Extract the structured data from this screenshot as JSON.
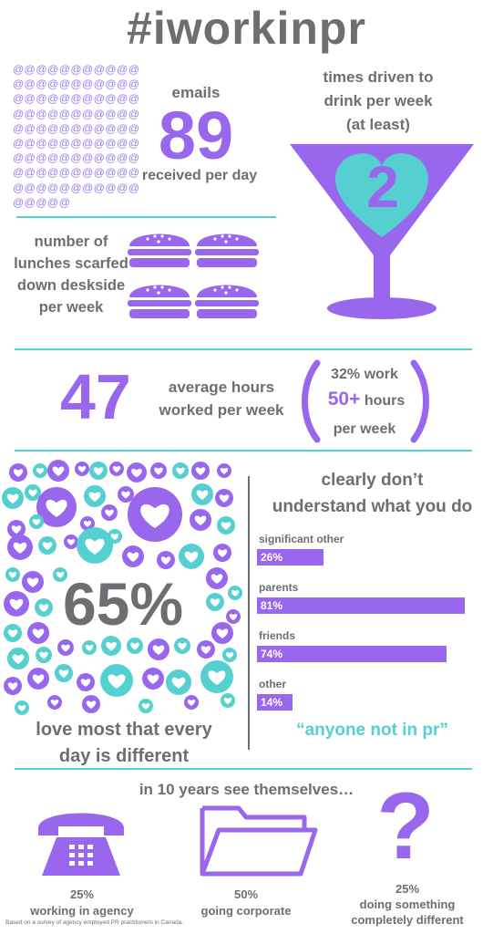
{
  "title": "#iworkinpr",
  "emails": {
    "symbols": "@@@@@@@@@@@@@@@@@@@@@@@@@@@@@@@@@@@@@@@@@@@@@@@@@@@@@@@@@@@@@@@@@@@@@@@@@@@@@@@@@@@@@@@@@@@@@@@@@@@@@@@@",
    "label_top": "emails",
    "value": "89",
    "label_bottom": "received per day"
  },
  "drinks": {
    "label": [
      "times driven to",
      "drink per week",
      "(at least)"
    ],
    "value": "2"
  },
  "lunches": {
    "label": [
      "number of",
      "lunches scarfed",
      "down deskside",
      "per week"
    ],
    "count": 4
  },
  "hours": {
    "value": "47",
    "label": [
      "average hours",
      "worked per week"
    ],
    "side_top": "32% work",
    "side_value": "50+",
    "side_hours": "hours",
    "side_bottom": "per week"
  },
  "love": {
    "value": "65%",
    "caption": [
      "love most that every",
      "day is different"
    ]
  },
  "understand": {
    "title": [
      "clearly don’t",
      "understand what you do"
    ],
    "footer": "“anyone not in pr”"
  },
  "chart_data": {
    "type": "bar",
    "title": "clearly don’t understand what you do",
    "categories": [
      "significant other",
      "parents",
      "friends",
      "other"
    ],
    "values": [
      26,
      81,
      74,
      14
    ],
    "value_labels": [
      "26%",
      "81%",
      "74%",
      "14%"
    ],
    "unit": "%"
  },
  "future": {
    "title": "in 10 years see themselves…",
    "items": [
      {
        "pct": "25%",
        "label": [
          "working in agency"
        ]
      },
      {
        "pct": "50%",
        "label": [
          "going corporate"
        ]
      },
      {
        "pct": "25%",
        "label": [
          "doing something",
          "completely different"
        ]
      }
    ]
  },
  "footnote": "Based on a survey of agency employed PR practitioners in Canada.",
  "colors": {
    "purple": "#9966ee",
    "teal": "#55cfcf",
    "grey": "#6d6e71"
  }
}
